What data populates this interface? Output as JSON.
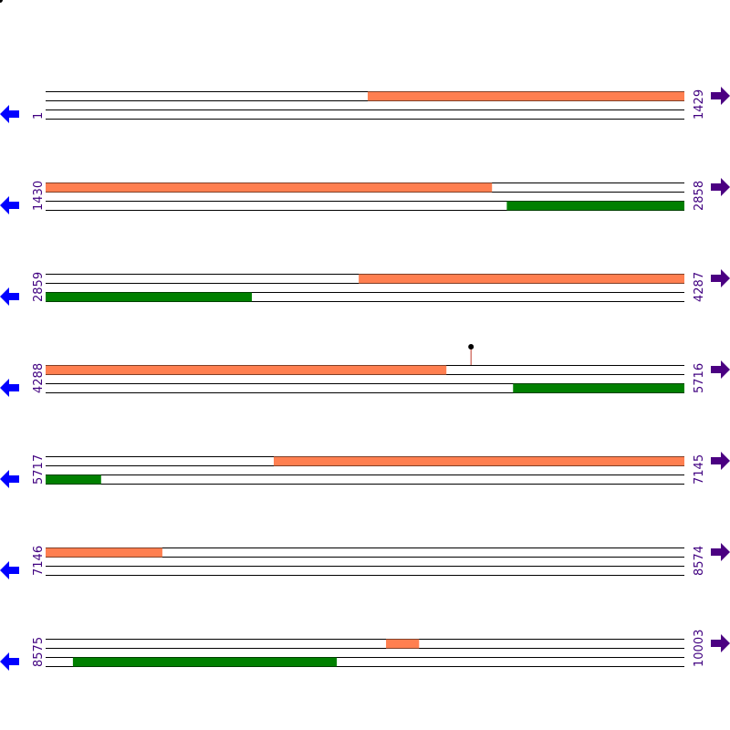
{
  "colors": {
    "forward": "#ff7f50",
    "reverse": "#008000"
  },
  "rows": [
    {
      "start": 1,
      "end": 1429,
      "features": [
        {
          "strand": "forward",
          "start": 721,
          "end": 1429
        }
      ]
    },
    {
      "start": 1430,
      "end": 2858,
      "features": [
        {
          "strand": "forward",
          "start": 1430,
          "end": 2428
        },
        {
          "strand": "reverse",
          "start": 2461,
          "end": 2858
        }
      ]
    },
    {
      "start": 2859,
      "end": 4287,
      "features": [
        {
          "strand": "forward",
          "start": 3559,
          "end": 4287
        },
        {
          "strand": "reverse",
          "start": 2859,
          "end": 3320
        }
      ]
    },
    {
      "start": 4288,
      "end": 5716,
      "features": [
        {
          "strand": "forward",
          "start": 4288,
          "end": 5184
        },
        {
          "strand": "reverse",
          "start": 5333,
          "end": 5716
        }
      ],
      "markers": [
        5239
      ]
    },
    {
      "start": 5717,
      "end": 7145,
      "features": [
        {
          "strand": "forward",
          "start": 6227,
          "end": 7145
        },
        {
          "strand": "reverse",
          "start": 5717,
          "end": 5841
        }
      ]
    },
    {
      "start": 7146,
      "end": 8574,
      "features": [
        {
          "strand": "forward",
          "start": 7146,
          "end": 7407
        }
      ]
    },
    {
      "start": 8575,
      "end": 10003,
      "features": [
        {
          "strand": "forward",
          "start": 9336,
          "end": 9410
        },
        {
          "strand": "reverse",
          "start": 8636,
          "end": 9226
        }
      ]
    }
  ]
}
